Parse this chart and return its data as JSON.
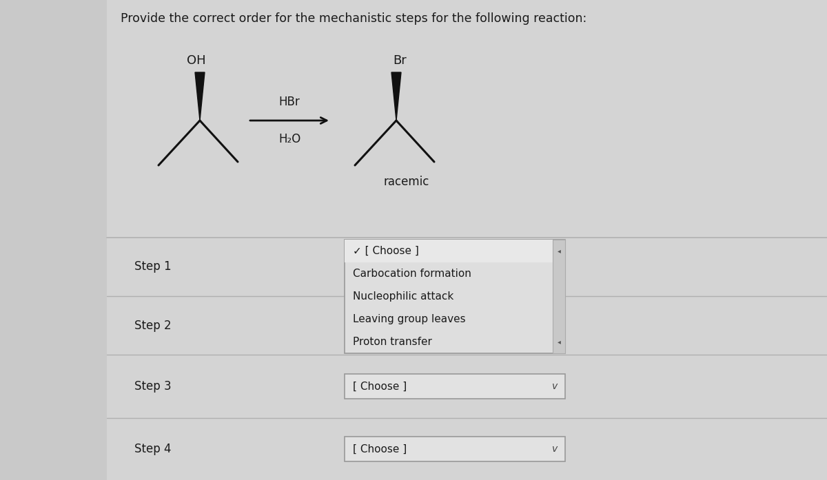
{
  "title": "Provide the correct order for the mechanistic steps for the following reaction:",
  "title_fontsize": 12.5,
  "bg_color": "#c9c9c9",
  "panel_color": "#d6d6d6",
  "step_labels": [
    "Step 1",
    "Step 2",
    "Step 3",
    "Step 4"
  ],
  "dropdown_open_items": [
    "✓ [ Choose ]",
    "Carbocation formation",
    "Nucleophilic attack",
    "Leaving group leaves",
    "Proton transfer"
  ],
  "dropdown_closed_text": "[ Choose ]",
  "text_color": "#1a1a1a",
  "line_color": "#b0b0b0",
  "arrow_color": "#111111",
  "reagent_above": "HBr",
  "reagent_below": "H₂O",
  "product_label": "racemic",
  "oh_label": "OH",
  "br_label": "Br"
}
